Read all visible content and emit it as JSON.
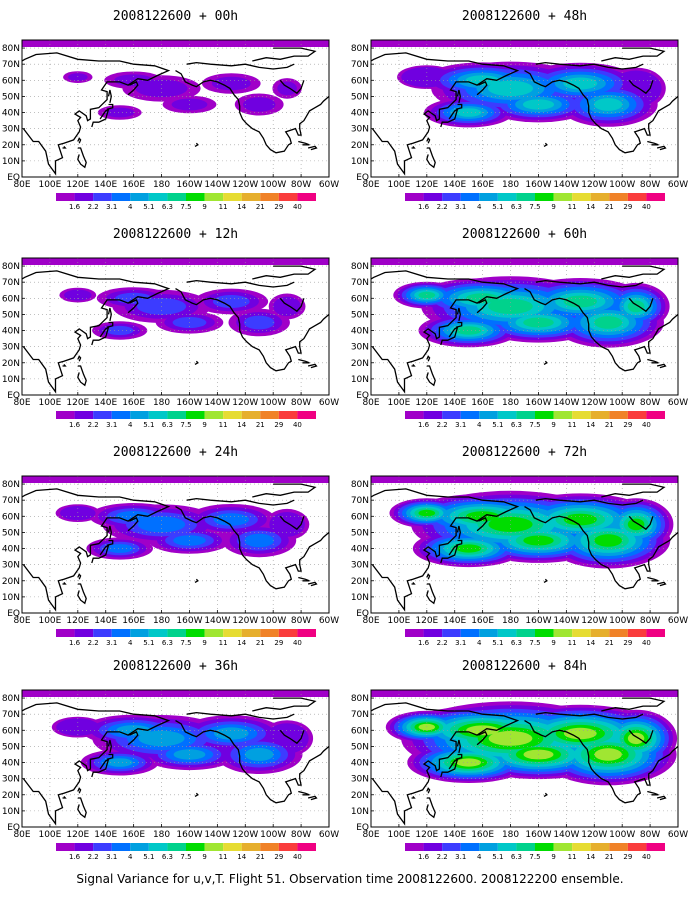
{
  "caption": "Signal Variance for u,v,T. Flight 51. Observation time 2008122600. 2008122200 ensemble.",
  "lat_labels": [
    "80N",
    "70N",
    "60N",
    "50N",
    "40N",
    "30N",
    "20N",
    "10N",
    "EQ"
  ],
  "lon_labels": [
    "80E",
    "100E",
    "120E",
    "140E",
    "160E",
    "180",
    "160W",
    "140W",
    "120W",
    "100W",
    "80W",
    "60W"
  ],
  "colorbar": {
    "colors": [
      "#a000c8",
      "#7000e0",
      "#3c3cff",
      "#0070ff",
      "#00a0e0",
      "#00c8c8",
      "#00d28c",
      "#00dc00",
      "#a0e632",
      "#e6dc32",
      "#e6af2d",
      "#f08228",
      "#fa3c3c",
      "#f00082"
    ],
    "labels": [
      "1.6",
      "2.2",
      "3.1",
      "4",
      "5.1",
      "6.3",
      "7.5",
      "9",
      "11",
      "14",
      "21",
      "29",
      "40"
    ]
  },
  "panels": [
    {
      "title": "2008122600 + 00h",
      "intensity": 0
    },
    {
      "title": "2008122600 + 48h",
      "intensity": 4
    },
    {
      "title": "2008122600 + 12h",
      "intensity": 1
    },
    {
      "title": "2008122600 + 60h",
      "intensity": 5
    },
    {
      "title": "2008122600 + 24h",
      "intensity": 2
    },
    {
      "title": "2008122600 + 72h",
      "intensity": 6
    },
    {
      "title": "2008122600 + 36h",
      "intensity": 3
    },
    {
      "title": "2008122600 + 84h",
      "intensity": 7
    }
  ]
}
